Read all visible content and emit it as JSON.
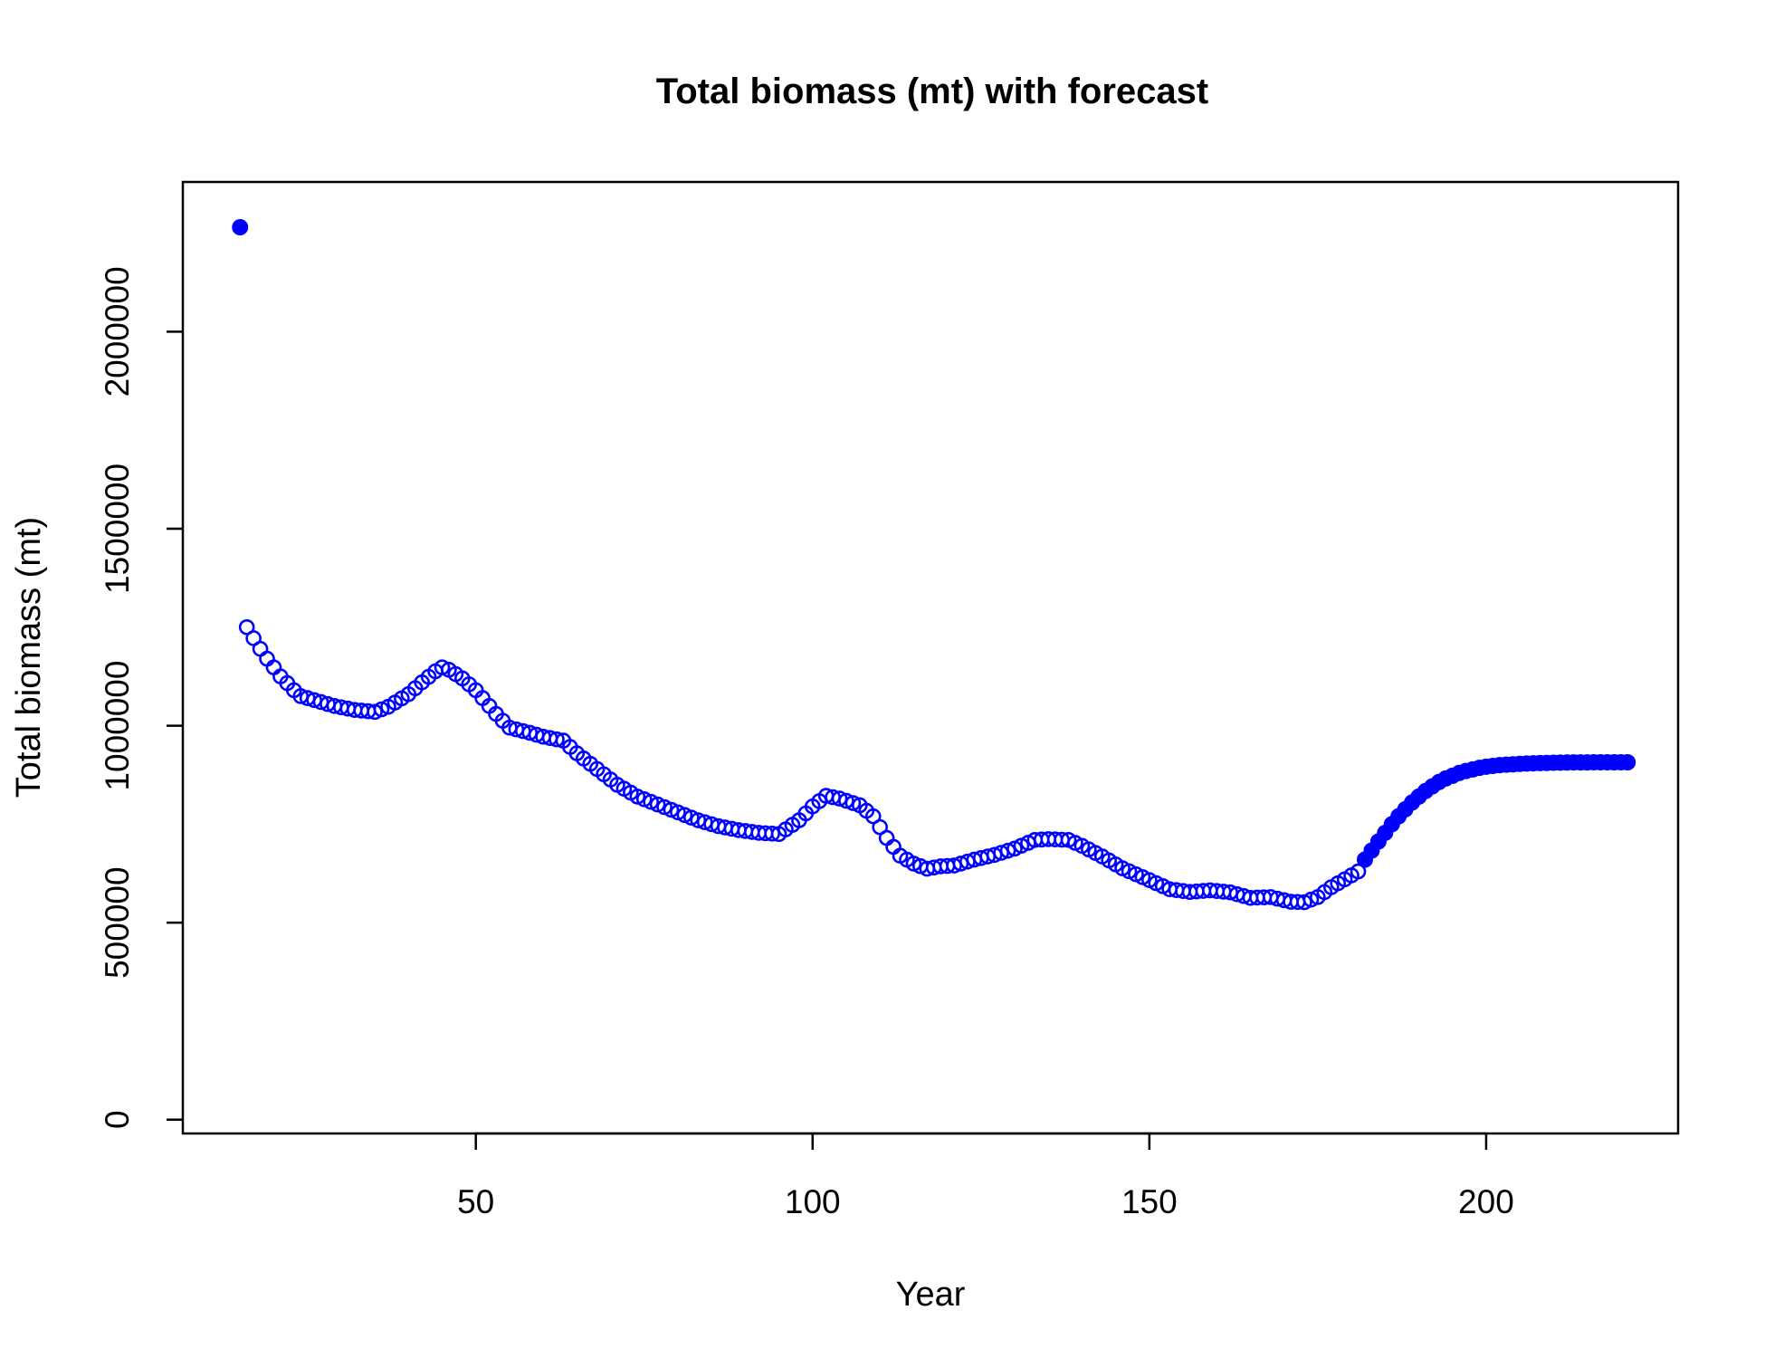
{
  "chart_data": {
    "type": "scatter",
    "title": "Total biomass (mt) with forecast",
    "xlabel": "Year",
    "ylabel": "Total biomass (mt)",
    "xlim": [
      6.5,
      228.5
    ],
    "ylim": [
      -35000,
      2380000
    ],
    "x_ticks": [
      50,
      100,
      150,
      200
    ],
    "x_tick_labels": [
      "50",
      "100",
      "150",
      "200"
    ],
    "y_ticks": [
      0,
      500000,
      1000000,
      1500000,
      2000000
    ],
    "y_tick_labels": [
      "0",
      "500000",
      "1000000",
      "1500000",
      "2000000"
    ],
    "grid": false,
    "point_color": "#0000FF",
    "series": [
      {
        "marker": "filled",
        "x": [
          15
        ],
        "y": [
          2265000
        ]
      },
      {
        "marker": "open",
        "x_start": 16,
        "x_end": 181,
        "x_step": 1,
        "keypoints": [
          [
            16,
            1250000
          ],
          [
            17,
            1222000
          ],
          [
            18,
            1195000
          ],
          [
            19,
            1170000
          ],
          [
            20,
            1148000
          ],
          [
            21,
            1125000
          ],
          [
            22,
            1108000
          ],
          [
            23,
            1090000
          ],
          [
            24,
            1075000
          ],
          [
            26,
            1065000
          ],
          [
            29,
            1050000
          ],
          [
            32,
            1040000
          ],
          [
            35,
            1035000
          ],
          [
            37,
            1048000
          ],
          [
            40,
            1080000
          ],
          [
            42,
            1110000
          ],
          [
            44,
            1138000
          ],
          [
            45,
            1148000
          ],
          [
            46,
            1142000
          ],
          [
            48,
            1120000
          ],
          [
            50,
            1090000
          ],
          [
            53,
            1030000
          ],
          [
            55,
            995000
          ],
          [
            58,
            982000
          ],
          [
            60,
            972000
          ],
          [
            63,
            962000
          ],
          [
            65,
            930000
          ],
          [
            68,
            890000
          ],
          [
            71,
            850000
          ],
          [
            74,
            820000
          ],
          [
            77,
            800000
          ],
          [
            80,
            780000
          ],
          [
            83,
            760000
          ],
          [
            86,
            745000
          ],
          [
            89,
            735000
          ],
          [
            92,
            728000
          ],
          [
            95,
            725000
          ],
          [
            98,
            760000
          ],
          [
            100,
            795000
          ],
          [
            102,
            822000
          ],
          [
            104,
            815000
          ],
          [
            107,
            798000
          ],
          [
            109,
            770000
          ],
          [
            111,
            715000
          ],
          [
            113,
            670000
          ],
          [
            115,
            650000
          ],
          [
            117,
            637000
          ],
          [
            119,
            643000
          ],
          [
            121,
            645000
          ],
          [
            124,
            660000
          ],
          [
            127,
            672000
          ],
          [
            130,
            688000
          ],
          [
            133,
            710000
          ],
          [
            135,
            712000
          ],
          [
            138,
            710000
          ],
          [
            140,
            695000
          ],
          [
            143,
            668000
          ],
          [
            146,
            638000
          ],
          [
            150,
            608000
          ],
          [
            153,
            585000
          ],
          [
            156,
            578000
          ],
          [
            159,
            582000
          ],
          [
            162,
            577000
          ],
          [
            165,
            563000
          ],
          [
            168,
            565000
          ],
          [
            171,
            553000
          ],
          [
            173,
            552000
          ],
          [
            175,
            565000
          ],
          [
            177,
            590000
          ],
          [
            179,
            610000
          ],
          [
            181,
            630000
          ]
        ]
      },
      {
        "marker": "filled",
        "x_start": 182,
        "x_end": 221,
        "x_step": 1,
        "keypoints": [
          [
            182,
            660000
          ],
          [
            183,
            683000
          ],
          [
            184,
            706000
          ],
          [
            185,
            728000
          ],
          [
            186,
            750000
          ],
          [
            187,
            770000
          ],
          [
            188,
            788000
          ],
          [
            189,
            805000
          ],
          [
            190,
            820000
          ],
          [
            191,
            834000
          ],
          [
            192,
            846000
          ],
          [
            193,
            857000
          ],
          [
            194,
            866000
          ],
          [
            195,
            873000
          ],
          [
            196,
            880000
          ],
          [
            197,
            885000
          ],
          [
            198,
            889000
          ],
          [
            199,
            893000
          ],
          [
            200,
            896000
          ],
          [
            201,
            898000
          ],
          [
            202,
            900000
          ],
          [
            203,
            901000
          ],
          [
            204,
            902000
          ],
          [
            205,
            903000
          ],
          [
            206,
            904000
          ],
          [
            207,
            904500
          ],
          [
            208,
            905000
          ],
          [
            209,
            905500
          ],
          [
            210,
            906000
          ],
          [
            211,
            906300
          ],
          [
            212,
            906500
          ],
          [
            213,
            906700
          ],
          [
            214,
            906800
          ],
          [
            215,
            906900
          ],
          [
            216,
            907000
          ],
          [
            217,
            907000
          ],
          [
            218,
            907000
          ],
          [
            219,
            907000
          ],
          [
            220,
            907000
          ],
          [
            221,
            907000
          ]
        ]
      }
    ]
  }
}
